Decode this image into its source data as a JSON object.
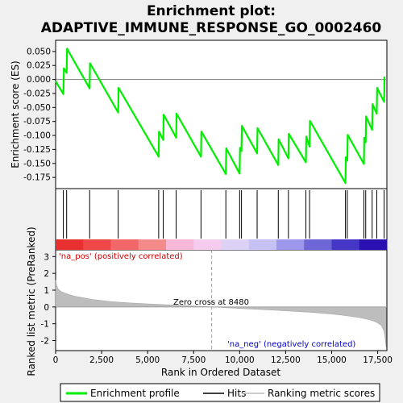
{
  "chart_data": {
    "type": "line",
    "title": "Enrichment plot:",
    "subtitle": "ADAPTIVE_IMMUNE_RESPONSE_GO_0002460",
    "xlabel": "Rank in Ordered Dataset",
    "ylabel_top": "Enrichment score (ES)",
    "ylabel_bottom": "Ranked list metric (PreRanked)",
    "xlim": [
      0,
      18000
    ],
    "ylim_top": [
      -0.195,
      0.07
    ],
    "ylim_bottom": [
      -2.6,
      3.4
    ],
    "x_ticks": [
      "0",
      "2,500",
      "5,000",
      "7,500",
      "10,000",
      "12,500",
      "15,000",
      "17,500"
    ],
    "x_tick_values": [
      0,
      2500,
      5000,
      7500,
      10000,
      12500,
      15000,
      17500
    ],
    "y_ticks_top": [
      "0.050",
      "0.025",
      "0.000",
      "-0.025",
      "-0.050",
      "-0.075",
      "-0.100",
      "-0.125",
      "-0.150",
      "-0.175"
    ],
    "y_tick_values_top": [
      0.05,
      0.025,
      0.0,
      -0.025,
      -0.05,
      -0.075,
      -0.1,
      -0.125,
      -0.15,
      -0.175
    ],
    "y_ticks_bottom": [
      "3",
      "2",
      "1",
      "0",
      "-1",
      "-2"
    ],
    "y_tick_values_bottom": [
      3,
      2,
      1,
      0,
      -1,
      -2
    ],
    "es_x": [
      0,
      420,
      450,
      600,
      620,
      1850,
      1870,
      3400,
      3420,
      5600,
      5620,
      5850,
      5870,
      6550,
      6570,
      7900,
      7920,
      9250,
      9270,
      10000,
      10020,
      10100,
      10120,
      10950,
      10970,
      12100,
      12120,
      12650,
      12670,
      13600,
      13620,
      13800,
      13820,
      15750,
      15770,
      15850,
      15870,
      16750,
      16770,
      16850,
      16870,
      17200,
      17220,
      17450,
      17470,
      17850,
      17870
    ],
    "es_y": [
      -0.003,
      -0.026,
      0.02,
      0.012,
      0.055,
      -0.016,
      0.029,
      -0.059,
      -0.015,
      -0.138,
      -0.093,
      -0.108,
      -0.063,
      -0.104,
      -0.061,
      -0.138,
      -0.093,
      -0.169,
      -0.123,
      -0.168,
      -0.122,
      -0.128,
      -0.083,
      -0.132,
      -0.087,
      -0.153,
      -0.107,
      -0.141,
      -0.097,
      -0.148,
      -0.102,
      -0.12,
      -0.074,
      -0.185,
      -0.139,
      -0.145,
      -0.099,
      -0.151,
      -0.104,
      -0.112,
      -0.066,
      -0.09,
      -0.044,
      -0.061,
      -0.015,
      -0.04,
      0.005
    ],
    "hits_x": [
      420,
      600,
      1850,
      3400,
      5600,
      5850,
      6550,
      7900,
      9250,
      10000,
      10100,
      10950,
      12100,
      12650,
      13600,
      13800,
      15750,
      15850,
      16750,
      16850,
      17200,
      17450,
      17850
    ],
    "metric_curve": [
      [
        0,
        1.6
      ],
      [
        60,
        1.25
      ],
      [
        150,
        1.05
      ],
      [
        300,
        0.92
      ],
      [
        600,
        0.78
      ],
      [
        1000,
        0.65
      ],
      [
        2000,
        0.45
      ],
      [
        3000,
        0.32
      ],
      [
        4000,
        0.24
      ],
      [
        5000,
        0.18
      ],
      [
        6000,
        0.13
      ],
      [
        7000,
        0.08
      ],
      [
        8000,
        0.03
      ],
      [
        8480,
        0.0
      ],
      [
        9000,
        -0.03
      ],
      [
        10000,
        -0.09
      ],
      [
        11000,
        -0.14
      ],
      [
        12000,
        -0.2
      ],
      [
        13000,
        -0.26
      ],
      [
        14000,
        -0.33
      ],
      [
        15000,
        -0.42
      ],
      [
        15500,
        -0.48
      ],
      [
        16000,
        -0.55
      ],
      [
        16500,
        -0.63
      ],
      [
        17000,
        -0.75
      ],
      [
        17300,
        -0.85
      ],
      [
        17500,
        -0.95
      ],
      [
        17700,
        -1.1
      ],
      [
        17850,
        -1.45
      ],
      [
        17920,
        -2.0
      ],
      [
        17960,
        -2.4
      ]
    ],
    "zero_cross": 8480,
    "zero_cross_label": "Zero cross at 8480",
    "pos_label": "'na_pos' (positively correlated)",
    "neg_label": "'na_neg' (negatively correlated)",
    "heat_colors": [
      "#e83030",
      "#f04848",
      "#f26868",
      "#f58a8a",
      "#f8b8d8",
      "#f5ccee",
      "#dcd2f5",
      "#c6c2f6",
      "#9e98ec",
      "#6e66d6",
      "#4536c6",
      "#2a10b0"
    ],
    "legend": [
      "Enrichment profile",
      "Hits",
      "Ranking metric scores"
    ],
    "colors": {
      "es_line": "#00ee00",
      "hits": "#000000",
      "metric_fill": "#bdbdbd",
      "pos_text": "#cc0000",
      "neg_text": "#0000cc",
      "zero_line": "#a0a0a0"
    }
  }
}
